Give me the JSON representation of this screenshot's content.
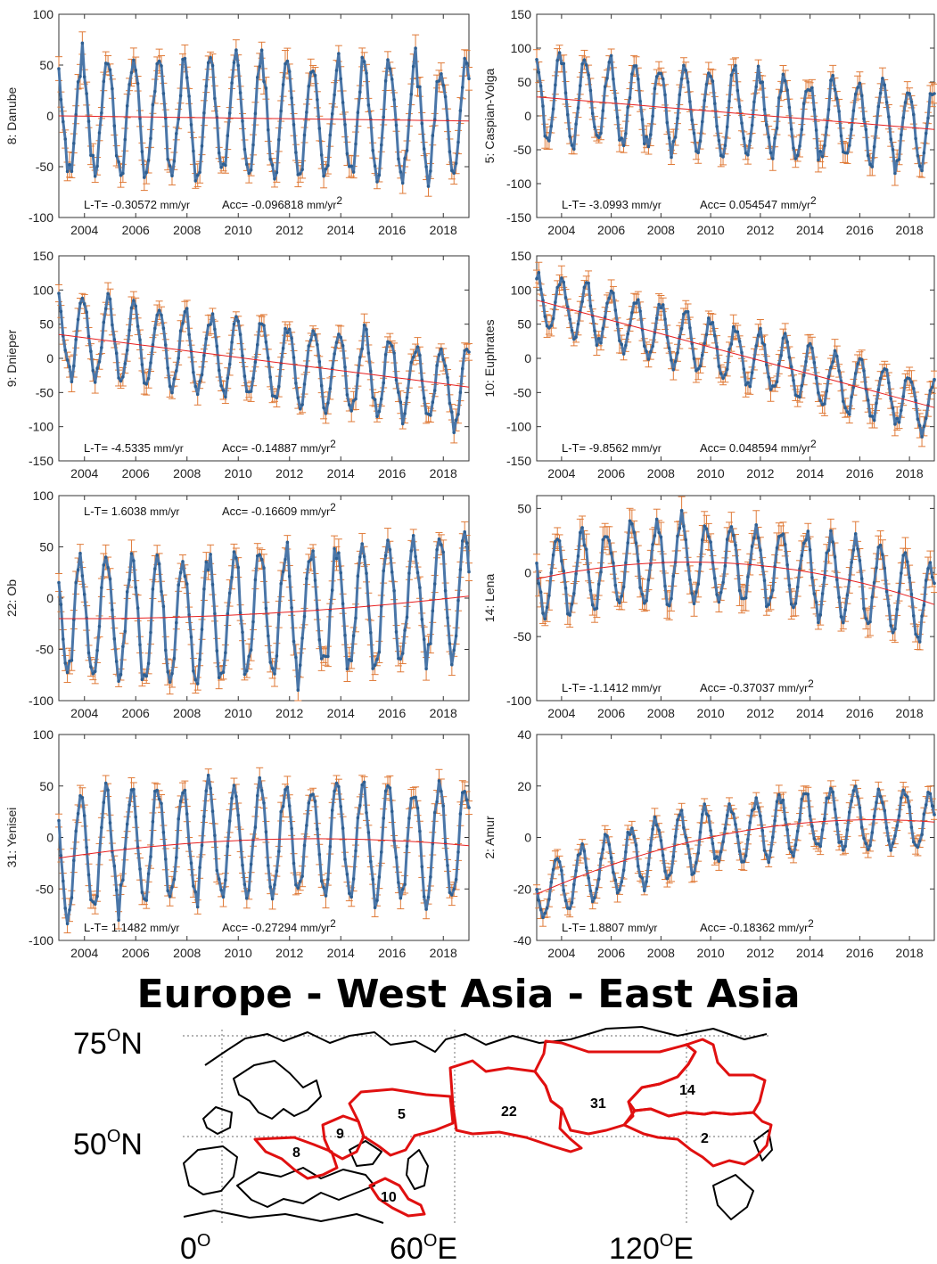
{
  "heading": "Europe - West Asia - East Asia",
  "colors": {
    "series": "#4a76a8",
    "error_bars": "#e07b39",
    "trend": "#e82020",
    "region_border": "#e01010",
    "coast": "#000000"
  },
  "chart_data": [
    {
      "type": "line",
      "ylabel": "8: Danube",
      "ylim": [
        -100,
        100
      ],
      "yticks": [
        -100,
        -50,
        0,
        50,
        100
      ],
      "xticks": [
        "2004",
        "2006",
        "2008",
        "2010",
        "2012",
        "2014",
        "2016",
        "2018"
      ],
      "xlim": [
        2003,
        2019
      ],
      "amplitude": 58,
      "trend_start": 0,
      "trend_end": -5,
      "trend_curv": 0,
      "phase": 0.35,
      "error": 9,
      "lt_label": "L-T= -0.30572",
      "lt_unit": "mm/yr",
      "acc_label": "Acc= -0.096818",
      "acc_unit": "mm/yr",
      "acc_sup": "2",
      "annot_pos": "bottom"
    },
    {
      "type": "line",
      "ylabel": "5: Caspian-Volga",
      "ylim": [
        -150,
        150
      ],
      "yticks": [
        -150,
        -100,
        -50,
        0,
        50,
        100,
        150
      ],
      "xticks": [
        "2004",
        "2006",
        "2008",
        "2010",
        "2012",
        "2014",
        "2016",
        "2018"
      ],
      "xlim": [
        2003,
        2019
      ],
      "amplitude": 62,
      "trend_start": 28,
      "trend_end": -20,
      "trend_curv": 0,
      "phase": 0.3,
      "error": 12,
      "lt_label": "L-T= -3.0993",
      "lt_unit": "mm/yr",
      "acc_label": "Acc= 0.054547",
      "acc_unit": "mm/yr",
      "acc_sup": "2",
      "annot_pos": "bottom"
    },
    {
      "type": "line",
      "ylabel": "9: Dnieper",
      "ylim": [
        -150,
        150
      ],
      "yticks": [
        -150,
        -100,
        -50,
        0,
        50,
        100,
        150
      ],
      "xticks": [
        "2004",
        "2006",
        "2008",
        "2010",
        "2012",
        "2014",
        "2016",
        "2018"
      ],
      "xlim": [
        2003,
        2019
      ],
      "amplitude": 58,
      "trend_start": 35,
      "trend_end": -42,
      "trend_curv": 0,
      "phase": 0.32,
      "error": 11,
      "lt_label": "L-T= -4.5335",
      "lt_unit": "mm/yr",
      "acc_label": "Acc= -0.14887",
      "acc_unit": "mm/yr",
      "acc_sup": "2",
      "annot_pos": "bottom"
    },
    {
      "type": "line",
      "ylabel": "10: Euphrates",
      "ylim": [
        -150,
        150
      ],
      "yticks": [
        -150,
        -100,
        -50,
        0,
        50,
        100,
        150
      ],
      "xticks": [
        "2004",
        "2006",
        "2008",
        "2010",
        "2012",
        "2014",
        "2016",
        "2018"
      ],
      "xlim": [
        2003,
        2019
      ],
      "amplitude": 42,
      "trend_start": 85,
      "trend_end": -72,
      "trend_curv": 0,
      "phase": 0.25,
      "error": 12,
      "lt_label": "L-T= -9.8562",
      "lt_unit": "mm/yr",
      "acc_label": "Acc= 0.048594",
      "acc_unit": "mm/yr",
      "acc_sup": "2",
      "annot_pos": "bottom"
    },
    {
      "type": "line",
      "ylabel": "22: Ob",
      "ylim": [
        -100,
        100
      ],
      "yticks": [
        -100,
        -50,
        0,
        50,
        100
      ],
      "xticks": [
        "2004",
        "2006",
        "2008",
        "2010",
        "2012",
        "2014",
        "2016",
        "2018"
      ],
      "xlim": [
        2003,
        2019
      ],
      "amplitude": 62,
      "trend_start": -20,
      "trend_end": 2,
      "trend_curv": -6,
      "phase": 0.4,
      "error": 9,
      "lt_label": "L-T= 1.6038",
      "lt_unit": "mm/yr",
      "acc_label": "Acc= -0.16609",
      "acc_unit": "mm/yr",
      "acc_sup": "2",
      "annot_pos": "top"
    },
    {
      "type": "line",
      "ylabel": "14: Lena",
      "ylim": [
        -100,
        60
      ],
      "yticks": [
        -100,
        -50,
        0,
        50
      ],
      "xticks": [
        "2004",
        "2006",
        "2008",
        "2010",
        "2012",
        "2014",
        "2016",
        "2018"
      ],
      "xlim": [
        2003,
        2019
      ],
      "amplitude": 32,
      "trend_start": -5,
      "trend_end": -25,
      "trend_curv": 22,
      "phase": 0.42,
      "error": 8,
      "lt_label": "L-T= -1.1412",
      "lt_unit": "mm/yr",
      "acc_label": "Acc= -0.37037",
      "acc_unit": "mm/yr",
      "acc_sup": "2",
      "annot_pos": "bottom"
    },
    {
      "type": "line",
      "ylabel": "31: Yenisei",
      "ylim": [
        -100,
        100
      ],
      "yticks": [
        -100,
        -50,
        0,
        50,
        100
      ],
      "xticks": [
        "2004",
        "2006",
        "2008",
        "2010",
        "2012",
        "2014",
        "2016",
        "2018"
      ],
      "xlim": [
        2003,
        2019
      ],
      "amplitude": 55,
      "trend_start": -20,
      "trend_end": -8,
      "trend_curv": 12,
      "phase": 0.4,
      "error": 8,
      "lt_label": "L-T= 1.1482",
      "lt_unit": "mm/yr",
      "acc_label": "Acc= -0.27294",
      "acc_unit": "mm/yr",
      "acc_sup": "2",
      "annot_pos": "bottom"
    },
    {
      "type": "line",
      "ylabel": "2: Amur",
      "ylim": [
        -40,
        40
      ],
      "yticks": [
        -40,
        -20,
        0,
        20,
        40
      ],
      "xticks": [
        "2004",
        "2006",
        "2008",
        "2010",
        "2012",
        "2014",
        "2016",
        "2018"
      ],
      "xlim": [
        2003,
        2019
      ],
      "amplitude": 12,
      "trend_start": -22,
      "trend_end": 6,
      "trend_curv": 10,
      "phase": 0.45,
      "error": 2.5,
      "lt_label": "L-T= 1.8807",
      "lt_unit": "mm/yr",
      "acc_label": "Acc= -0.18362",
      "acc_unit": "mm/yr",
      "acc_sup": "2",
      "annot_pos": "bottom"
    }
  ],
  "map": {
    "lat_labels": [
      {
        "text": "75",
        "sup": "O",
        "suffix": "N"
      },
      {
        "text": "50",
        "sup": "O",
        "suffix": "N"
      }
    ],
    "lon_labels": [
      {
        "text": "0",
        "sup": "O",
        "suffix": ""
      },
      {
        "text": "60",
        "sup": "O",
        "suffix": "E"
      },
      {
        "text": "120",
        "sup": "O",
        "suffix": "E"
      }
    ],
    "regions": [
      "8",
      "9",
      "5",
      "10",
      "22",
      "31",
      "14",
      "2"
    ]
  }
}
